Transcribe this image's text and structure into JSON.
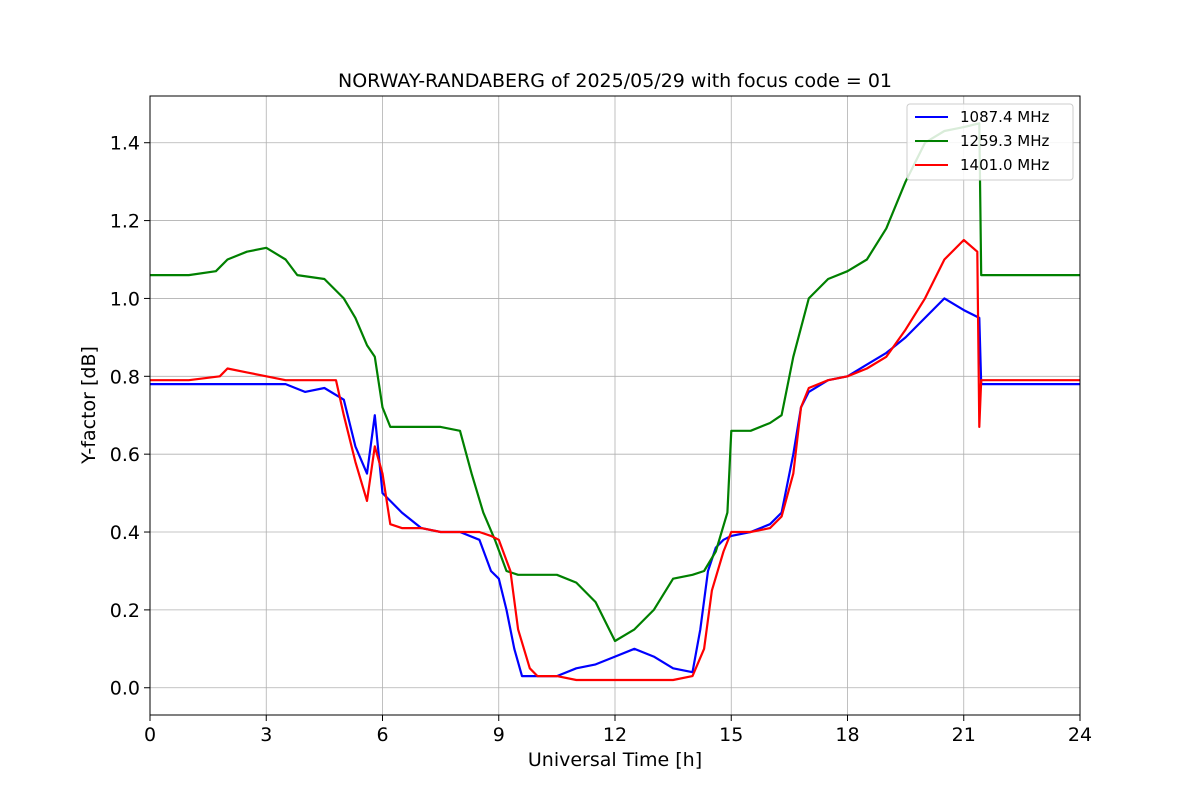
{
  "chart_data": {
    "type": "line",
    "title": "NORWAY-RANDABERG of 2025/05/29 with focus code = 01",
    "xlabel": "Universal Time [h]",
    "ylabel": "Y-factor [dB]",
    "xlim": [
      0,
      24
    ],
    "ylim": [
      -0.07,
      1.52
    ],
    "xticks": [
      0,
      3,
      6,
      9,
      12,
      15,
      18,
      21,
      24
    ],
    "yticks": [
      0.0,
      0.2,
      0.4,
      0.6,
      0.8,
      1.0,
      1.2,
      1.4
    ],
    "xtick_labels": [
      "0",
      "3",
      "6",
      "9",
      "12",
      "15",
      "18",
      "21",
      "24"
    ],
    "ytick_labels": [
      "0.0",
      "0.2",
      "0.4",
      "0.6",
      "0.8",
      "1.0",
      "1.2",
      "1.4"
    ],
    "grid": true,
    "legend_position": "top-right",
    "series": [
      {
        "name": "1087.4 MHz",
        "color": "#0000ff",
        "x": [
          0,
          1,
          2,
          3,
          3.5,
          4,
          4.5,
          5.0,
          5.3,
          5.6,
          5.8,
          6.0,
          6.2,
          6.5,
          7.0,
          7.5,
          8.0,
          8.5,
          8.8,
          9.0,
          9.2,
          9.4,
          9.6,
          10.0,
          10.5,
          11.0,
          11.5,
          12.0,
          12.5,
          13.0,
          13.5,
          14.0,
          14.2,
          14.4,
          14.6,
          14.8,
          15.0,
          15.5,
          16.0,
          16.3,
          16.6,
          16.8,
          17.0,
          17.5,
          18.0,
          18.5,
          19.0,
          19.5,
          20.0,
          20.5,
          21.0,
          21.4,
          21.45,
          22,
          23,
          24
        ],
        "y": [
          0.78,
          0.78,
          0.78,
          0.78,
          0.78,
          0.76,
          0.77,
          0.74,
          0.62,
          0.55,
          0.7,
          0.5,
          0.48,
          0.45,
          0.41,
          0.4,
          0.4,
          0.38,
          0.3,
          0.28,
          0.2,
          0.1,
          0.03,
          0.03,
          0.03,
          0.05,
          0.06,
          0.08,
          0.1,
          0.08,
          0.05,
          0.04,
          0.15,
          0.3,
          0.36,
          0.38,
          0.39,
          0.4,
          0.42,
          0.45,
          0.6,
          0.72,
          0.76,
          0.79,
          0.8,
          0.83,
          0.86,
          0.9,
          0.95,
          1.0,
          0.97,
          0.95,
          0.78,
          0.78,
          0.78,
          0.78
        ]
      },
      {
        "name": "1259.3 MHz",
        "color": "#008000",
        "x": [
          0,
          1,
          1.7,
          2.0,
          2.5,
          3.0,
          3.5,
          3.8,
          4.5,
          5.0,
          5.3,
          5.6,
          5.8,
          6.0,
          6.2,
          6.5,
          7.0,
          7.5,
          8.0,
          8.3,
          8.6,
          8.9,
          9.2,
          9.5,
          10.0,
          10.5,
          11.0,
          11.5,
          12.0,
          12.5,
          13.0,
          13.5,
          14.0,
          14.3,
          14.6,
          14.9,
          15.0,
          15.5,
          16.0,
          16.3,
          16.6,
          17.0,
          17.5,
          18.0,
          18.5,
          19.0,
          19.5,
          20.0,
          20.5,
          21.0,
          21.4,
          21.45,
          22,
          23,
          24
        ],
        "y": [
          1.06,
          1.06,
          1.07,
          1.1,
          1.12,
          1.13,
          1.1,
          1.06,
          1.05,
          1.0,
          0.95,
          0.88,
          0.85,
          0.72,
          0.67,
          0.67,
          0.67,
          0.67,
          0.66,
          0.55,
          0.45,
          0.38,
          0.3,
          0.29,
          0.29,
          0.29,
          0.27,
          0.22,
          0.12,
          0.15,
          0.2,
          0.28,
          0.29,
          0.3,
          0.35,
          0.45,
          0.66,
          0.66,
          0.68,
          0.7,
          0.85,
          1.0,
          1.05,
          1.07,
          1.1,
          1.18,
          1.3,
          1.4,
          1.43,
          1.44,
          1.45,
          1.06,
          1.06,
          1.06,
          1.06
        ]
      },
      {
        "name": "1401.0 MHz",
        "color": "#ff0000",
        "x": [
          0,
          1,
          1.8,
          2.0,
          2.5,
          3.0,
          3.5,
          4.0,
          4.5,
          4.8,
          5.0,
          5.3,
          5.6,
          5.8,
          6.0,
          6.2,
          6.5,
          7.0,
          7.5,
          8.0,
          8.5,
          8.8,
          9.0,
          9.3,
          9.5,
          9.8,
          10.0,
          10.5,
          11.0,
          11.5,
          12.0,
          12.5,
          13.0,
          13.5,
          14.0,
          14.3,
          14.5,
          14.8,
          15.0,
          15.5,
          16.0,
          16.3,
          16.6,
          16.8,
          17.0,
          17.5,
          18.0,
          18.5,
          19.0,
          19.5,
          20.0,
          20.5,
          21.0,
          21.35,
          21.4,
          21.45,
          22,
          23,
          24
        ],
        "y": [
          0.79,
          0.79,
          0.8,
          0.82,
          0.81,
          0.8,
          0.79,
          0.79,
          0.79,
          0.79,
          0.7,
          0.58,
          0.48,
          0.62,
          0.55,
          0.42,
          0.41,
          0.41,
          0.4,
          0.4,
          0.4,
          0.39,
          0.38,
          0.3,
          0.15,
          0.05,
          0.03,
          0.03,
          0.02,
          0.02,
          0.02,
          0.02,
          0.02,
          0.02,
          0.03,
          0.1,
          0.25,
          0.35,
          0.4,
          0.4,
          0.41,
          0.44,
          0.55,
          0.72,
          0.77,
          0.79,
          0.8,
          0.82,
          0.85,
          0.92,
          1.0,
          1.1,
          1.15,
          1.12,
          0.67,
          0.79,
          0.79,
          0.79,
          0.79
        ]
      }
    ]
  }
}
